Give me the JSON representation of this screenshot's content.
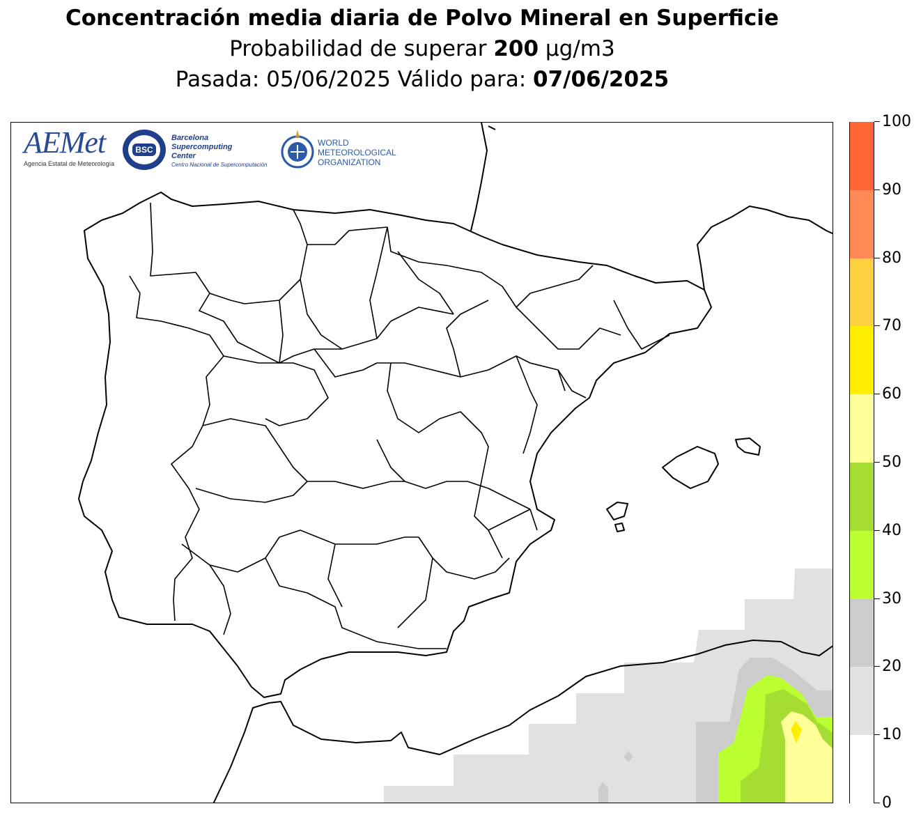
{
  "title": {
    "main": "Concentración media diaria de Polvo Mineral en Superficie",
    "sub_prefix": "Probabilidad de superar ",
    "sub_value": "200",
    "sub_unit": " µg/m3",
    "run_prefix": "Pasada: ",
    "run_date": "05/06/2025",
    "valid_prefix": " Válido para: ",
    "valid_date": "07/06/2025"
  },
  "logos": {
    "aemet_name": "AEMet",
    "aemet_caption": "Agencia Estatal de Meteorología",
    "bsc_badge": "BSC",
    "bsc_line1": "Barcelona",
    "bsc_line2": "Supercomputing",
    "bsc_line3": "Center",
    "bsc_caption": "Centro Nacional de Supercomputación",
    "wmo_line1": "WORLD",
    "wmo_line2": "METEOROLOGICAL",
    "wmo_line3": "ORGANIZATION"
  },
  "colorbar": {
    "labels": [
      "0",
      "10",
      "20",
      "30",
      "40",
      "50",
      "60",
      "70",
      "80",
      "90",
      "100"
    ],
    "bins": [
      {
        "from": 0,
        "to": 10,
        "color": "#ffffff"
      },
      {
        "from": 10,
        "to": 20,
        "color": "#e1e1e1"
      },
      {
        "from": 20,
        "to": 30,
        "color": "#cccccc"
      },
      {
        "from": 30,
        "to": 40,
        "color": "#bbff33"
      },
      {
        "from": 40,
        "to": 50,
        "color": "#a5dd33"
      },
      {
        "from": 50,
        "to": 60,
        "color": "#ffff99"
      },
      {
        "from": 60,
        "to": 70,
        "color": "#ffee00"
      },
      {
        "from": 70,
        "to": 80,
        "color": "#ffd03f"
      },
      {
        "from": 80,
        "to": 90,
        "color": "#ff8a55"
      },
      {
        "from": 90,
        "to": 100,
        "color": "#ff6633"
      }
    ]
  },
  "map": {
    "region": "Iberian Peninsula and Balearic Islands",
    "land_color": "#ffffff",
    "border_color": "#000000"
  }
}
